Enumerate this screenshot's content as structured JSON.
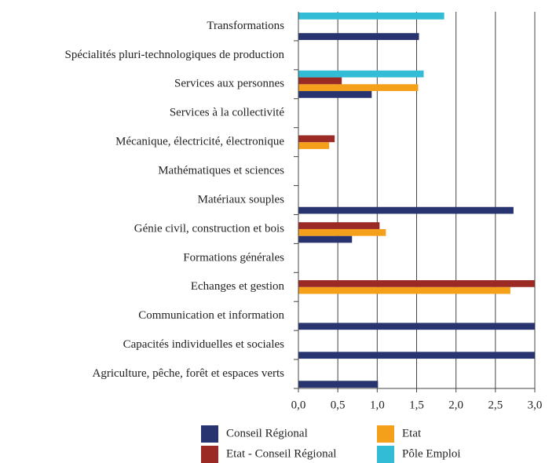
{
  "chart_data": {
    "type": "barh",
    "categories": [
      "Transformations",
      "Spécialités pluri-technologiques de production",
      "Services aux personnes",
      "Services à la collectivité",
      "Mécanique, électricité, électronique",
      "Mathématiques et sciences",
      "Matériaux souples",
      "Génie civil, construction et bois",
      "Formations générales",
      "Echanges et gestion",
      "Communication et information",
      "Capacités individuelles et sociales",
      "Agriculture, pêche, forêt et espaces verts"
    ],
    "series": [
      {
        "name": "Conseil Régional",
        "color": "#283470",
        "values": [
          1.53,
          null,
          0.93,
          null,
          null,
          null,
          2.73,
          0.68,
          null,
          null,
          3.0,
          3.0,
          1.01
        ]
      },
      {
        "name": "Etat",
        "color": "#f5a01a",
        "values": [
          null,
          null,
          1.52,
          null,
          0.39,
          null,
          null,
          1.11,
          null,
          2.69,
          null,
          null,
          null
        ]
      },
      {
        "name": "Etat - Conseil Régional",
        "color": "#9b2a24",
        "values": [
          null,
          null,
          0.55,
          null,
          0.46,
          null,
          null,
          1.03,
          null,
          3.0,
          null,
          null,
          null
        ]
      },
      {
        "name": "Pôle Emploi",
        "color": "#33bcd6",
        "values": [
          1.85,
          null,
          1.59,
          null,
          null,
          null,
          null,
          null,
          null,
          null,
          null,
          null,
          null
        ]
      }
    ],
    "xlim": [
      0,
      3.0
    ],
    "xticks": [
      {
        "value": 0,
        "label": "0,0"
      },
      {
        "value": 0.5,
        "label": "0,5"
      },
      {
        "value": 1.0,
        "label": "1,0"
      },
      {
        "value": 1.5,
        "label": "1,5"
      },
      {
        "value": 2.0,
        "label": "2,0"
      },
      {
        "value": 2.5,
        "label": "2,5"
      },
      {
        "value": 3.0,
        "label": "3,0"
      }
    ],
    "grid": true
  }
}
